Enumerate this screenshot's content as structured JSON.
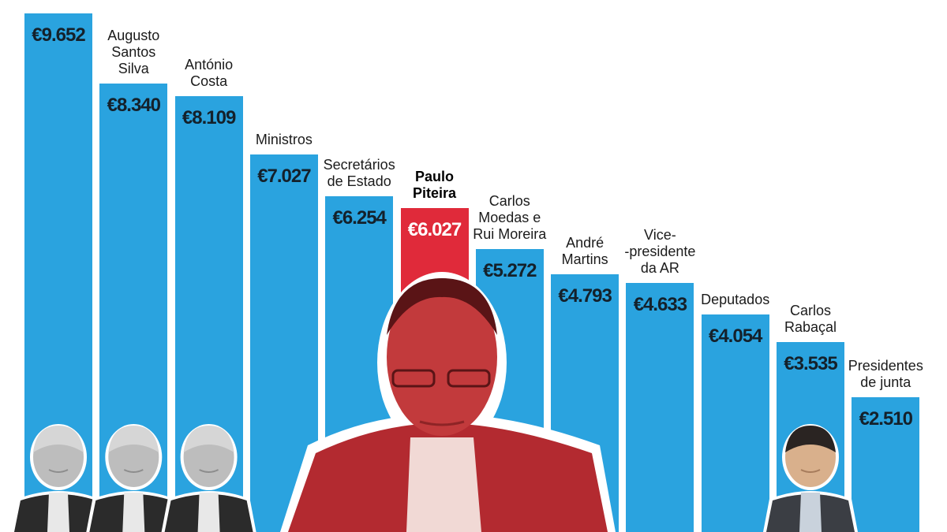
{
  "chart_data": {
    "type": "bar",
    "title": "",
    "xlabel": "",
    "ylabel": "",
    "ylim": [
      0,
      9900
    ],
    "categories": [
      "",
      "Augusto Santos Silva",
      "António Costa",
      "Ministros",
      "Secretários de Estado",
      "Paulo Piteira",
      "Carlos Moedas e Rui Moreira",
      "André Martins",
      "Vice--presidente da AR",
      "Deputados",
      "Carlos Rabaçal",
      "Presidentes de junta"
    ],
    "values": [
      9652,
      8340,
      8109,
      7027,
      6254,
      6027,
      5272,
      4793,
      4633,
      4054,
      3535,
      2510
    ],
    "value_labels": [
      "€9.652",
      "€8.340",
      "€8.109",
      "€7.027",
      "€6.254",
      "€6.027",
      "€5.272",
      "€4.793",
      "€4.633",
      "€4.054",
      "€3.535",
      "€2.510"
    ],
    "category_lines": [
      "",
      "Augusto\nSantos\nSilva",
      "António\nCosta",
      "Ministros",
      "Secretários\nde Estado",
      "Paulo\nPiteira",
      "Carlos\nMoedas e\nRui Moreira",
      "André\nMartins",
      "Vice-\n-presidente\nda AR",
      "Deputados",
      "Carlos\nRabaçal",
      "Presidentes\nde junta"
    ],
    "highlight_index": 5,
    "colors": {
      "bar": "#2aa3df",
      "highlight": "#e02a3a",
      "label": "#14212b"
    },
    "grid": false,
    "legend": "none"
  },
  "photos": [
    {
      "bar_index": 0,
      "icon": "person-photo-icon",
      "tone": "grayscale"
    },
    {
      "bar_index": 1,
      "icon": "person-photo-icon",
      "tone": "grayscale"
    },
    {
      "bar_index": 2,
      "icon": "person-photo-icon",
      "tone": "grayscale"
    },
    {
      "bar_index": 5,
      "icon": "person-photo-icon",
      "tone": "red-duotone"
    },
    {
      "bar_index": 10,
      "icon": "person-photo-icon",
      "tone": "color"
    }
  ]
}
